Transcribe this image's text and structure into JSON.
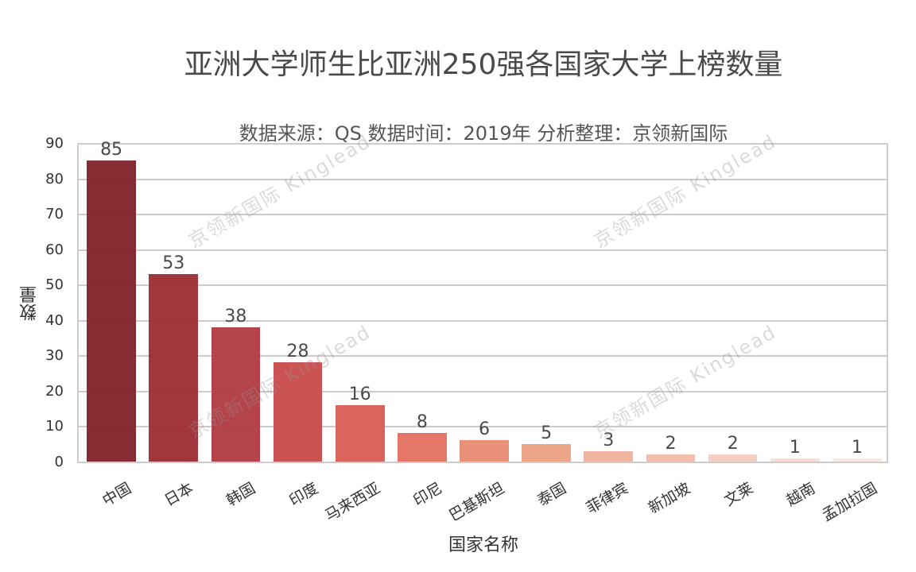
{
  "chart_data": {
    "type": "bar",
    "title": "亚洲大学师生比亚洲250强各国家大学上榜数量",
    "subtitle": "数据来源：QS 数据时间：2019年 分析整理：京领新国际",
    "xlabel": "国家名称",
    "ylabel": "数量",
    "ylim": [
      0,
      90
    ],
    "yticks": [
      "0",
      "10",
      "20",
      "30",
      "40",
      "50",
      "60",
      "70",
      "80",
      "90"
    ],
    "grid": true,
    "legend": "none",
    "categories": [
      "中国",
      "日本",
      "韩国",
      "印度",
      "马来西亚",
      "印尼",
      "巴基斯坦",
      "泰国",
      "菲律宾",
      "新加坡",
      "文莱",
      "越南",
      "孟加拉国"
    ],
    "values": [
      85,
      53,
      38,
      28,
      16,
      8,
      6,
      5,
      3,
      2,
      2,
      1,
      1
    ],
    "value_labels": [
      "85",
      "53",
      "38",
      "28",
      "16",
      "8",
      "6",
      "5",
      "3",
      "2",
      "2",
      "1",
      "1"
    ],
    "colors": [
      "#7f2229",
      "#9c2c33",
      "#b03a40",
      "#c84a4b",
      "#d95d53",
      "#e3705f",
      "#e98a72",
      "#eca083",
      "#efb19a",
      "#f2bca8",
      "#f4cdbf",
      "#f6dcd3",
      "#f9e6e0"
    ]
  },
  "watermark": {
    "text": "京领新国际 Kinglead"
  }
}
